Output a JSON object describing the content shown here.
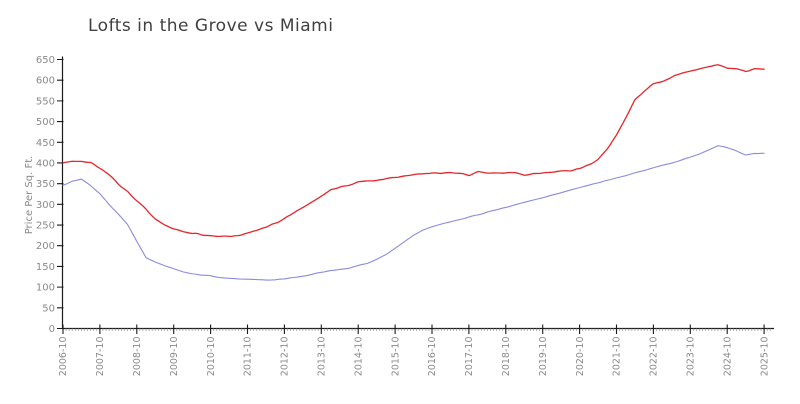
{
  "chart_data": {
    "type": "line",
    "title": "Lofts in the Grove vs Miami",
    "ylabel": "Price Per Sq. Ft.",
    "ylim": [
      0,
      650
    ],
    "y_ticks": [
      0,
      50,
      100,
      150,
      200,
      250,
      300,
      350,
      400,
      450,
      500,
      550,
      600,
      650
    ],
    "x_tick_labels": [
      "2006-10",
      "2007-10",
      "2008-10",
      "2009-10",
      "2010-10",
      "2011-10",
      "2012-10",
      "2013-10",
      "2014-10",
      "2015-10",
      "2016-10",
      "2017-10",
      "2018-10",
      "2019-10",
      "2020-10",
      "2021-10",
      "2022-10",
      "2023-10",
      "2024-10",
      "2025-10"
    ],
    "x": [
      "2006-10",
      "2007-01",
      "2007-04",
      "2007-07",
      "2007-10",
      "2008-01",
      "2008-04",
      "2008-07",
      "2008-10",
      "2009-01",
      "2009-04",
      "2009-07",
      "2009-10",
      "2010-01",
      "2010-04",
      "2010-07",
      "2010-10",
      "2011-01",
      "2011-04",
      "2011-07",
      "2011-10",
      "2012-01",
      "2012-04",
      "2012-07",
      "2012-10",
      "2013-01",
      "2013-04",
      "2013-07",
      "2013-10",
      "2014-01",
      "2014-04",
      "2014-07",
      "2014-10",
      "2015-01",
      "2015-04",
      "2015-07",
      "2015-10",
      "2016-01",
      "2016-04",
      "2016-07",
      "2016-10",
      "2017-01",
      "2017-04",
      "2017-07",
      "2017-10",
      "2018-01",
      "2018-04",
      "2018-07",
      "2018-10",
      "2019-01",
      "2019-04",
      "2019-07",
      "2019-10",
      "2020-01",
      "2020-04",
      "2020-07",
      "2020-10",
      "2021-01",
      "2021-04",
      "2021-07",
      "2021-10",
      "2022-01",
      "2022-04",
      "2022-07",
      "2022-10",
      "2023-01",
      "2023-04",
      "2023-07",
      "2023-10",
      "2024-01",
      "2024-04",
      "2024-07",
      "2024-10",
      "2025-01",
      "2025-04",
      "2025-07",
      "2025-10"
    ],
    "series": [
      {
        "name": "Lofts in the Grove",
        "color": "#8b8be0",
        "values": [
          346,
          356,
          361,
          345,
          326,
          299,
          276,
          251,
          210,
          171,
          161,
          152,
          144,
          137,
          132,
          129,
          127,
          123,
          121,
          120,
          119,
          118,
          117,
          118,
          120,
          123,
          127,
          131,
          136,
          140,
          143,
          146,
          152,
          158,
          167,
          179,
          194,
          209,
          225,
          238,
          246,
          252,
          258,
          263,
          269,
          275,
          281,
          287,
          293,
          299,
          305,
          310,
          316,
          322,
          328,
          334,
          340,
          346,
          352,
          358,
          364,
          370,
          376,
          382,
          388,
          394,
          400,
          407,
          414,
          422,
          432,
          442,
          437,
          429,
          419,
          423,
          423
        ]
      },
      {
        "name": "Miami",
        "color": "#e4262c",
        "values": [
          400,
          404,
          405,
          401,
          388,
          372,
          349,
          331,
          308,
          288,
          264,
          250,
          240,
          234,
          230,
          227,
          225,
          223,
          222,
          224,
          230,
          238,
          245,
          254,
          265,
          279,
          292,
          306,
          320,
          334,
          341,
          347,
          353,
          356,
          358,
          362,
          366,
          369,
          372,
          374,
          376,
          375,
          378,
          375,
          371,
          379,
          377,
          375,
          376,
          376,
          371,
          374,
          376,
          378,
          379,
          381,
          387,
          395,
          408,
          434,
          466,
          510,
          552,
          575,
          591,
          598,
          608,
          617,
          622,
          627,
          633,
          637,
          630,
          629,
          622,
          627,
          625
        ]
      }
    ],
    "grid": false,
    "legend": "none",
    "axis_color": "#1a1a1a",
    "tick_label_color": "#8a8a8a",
    "title_color": "#404040"
  }
}
